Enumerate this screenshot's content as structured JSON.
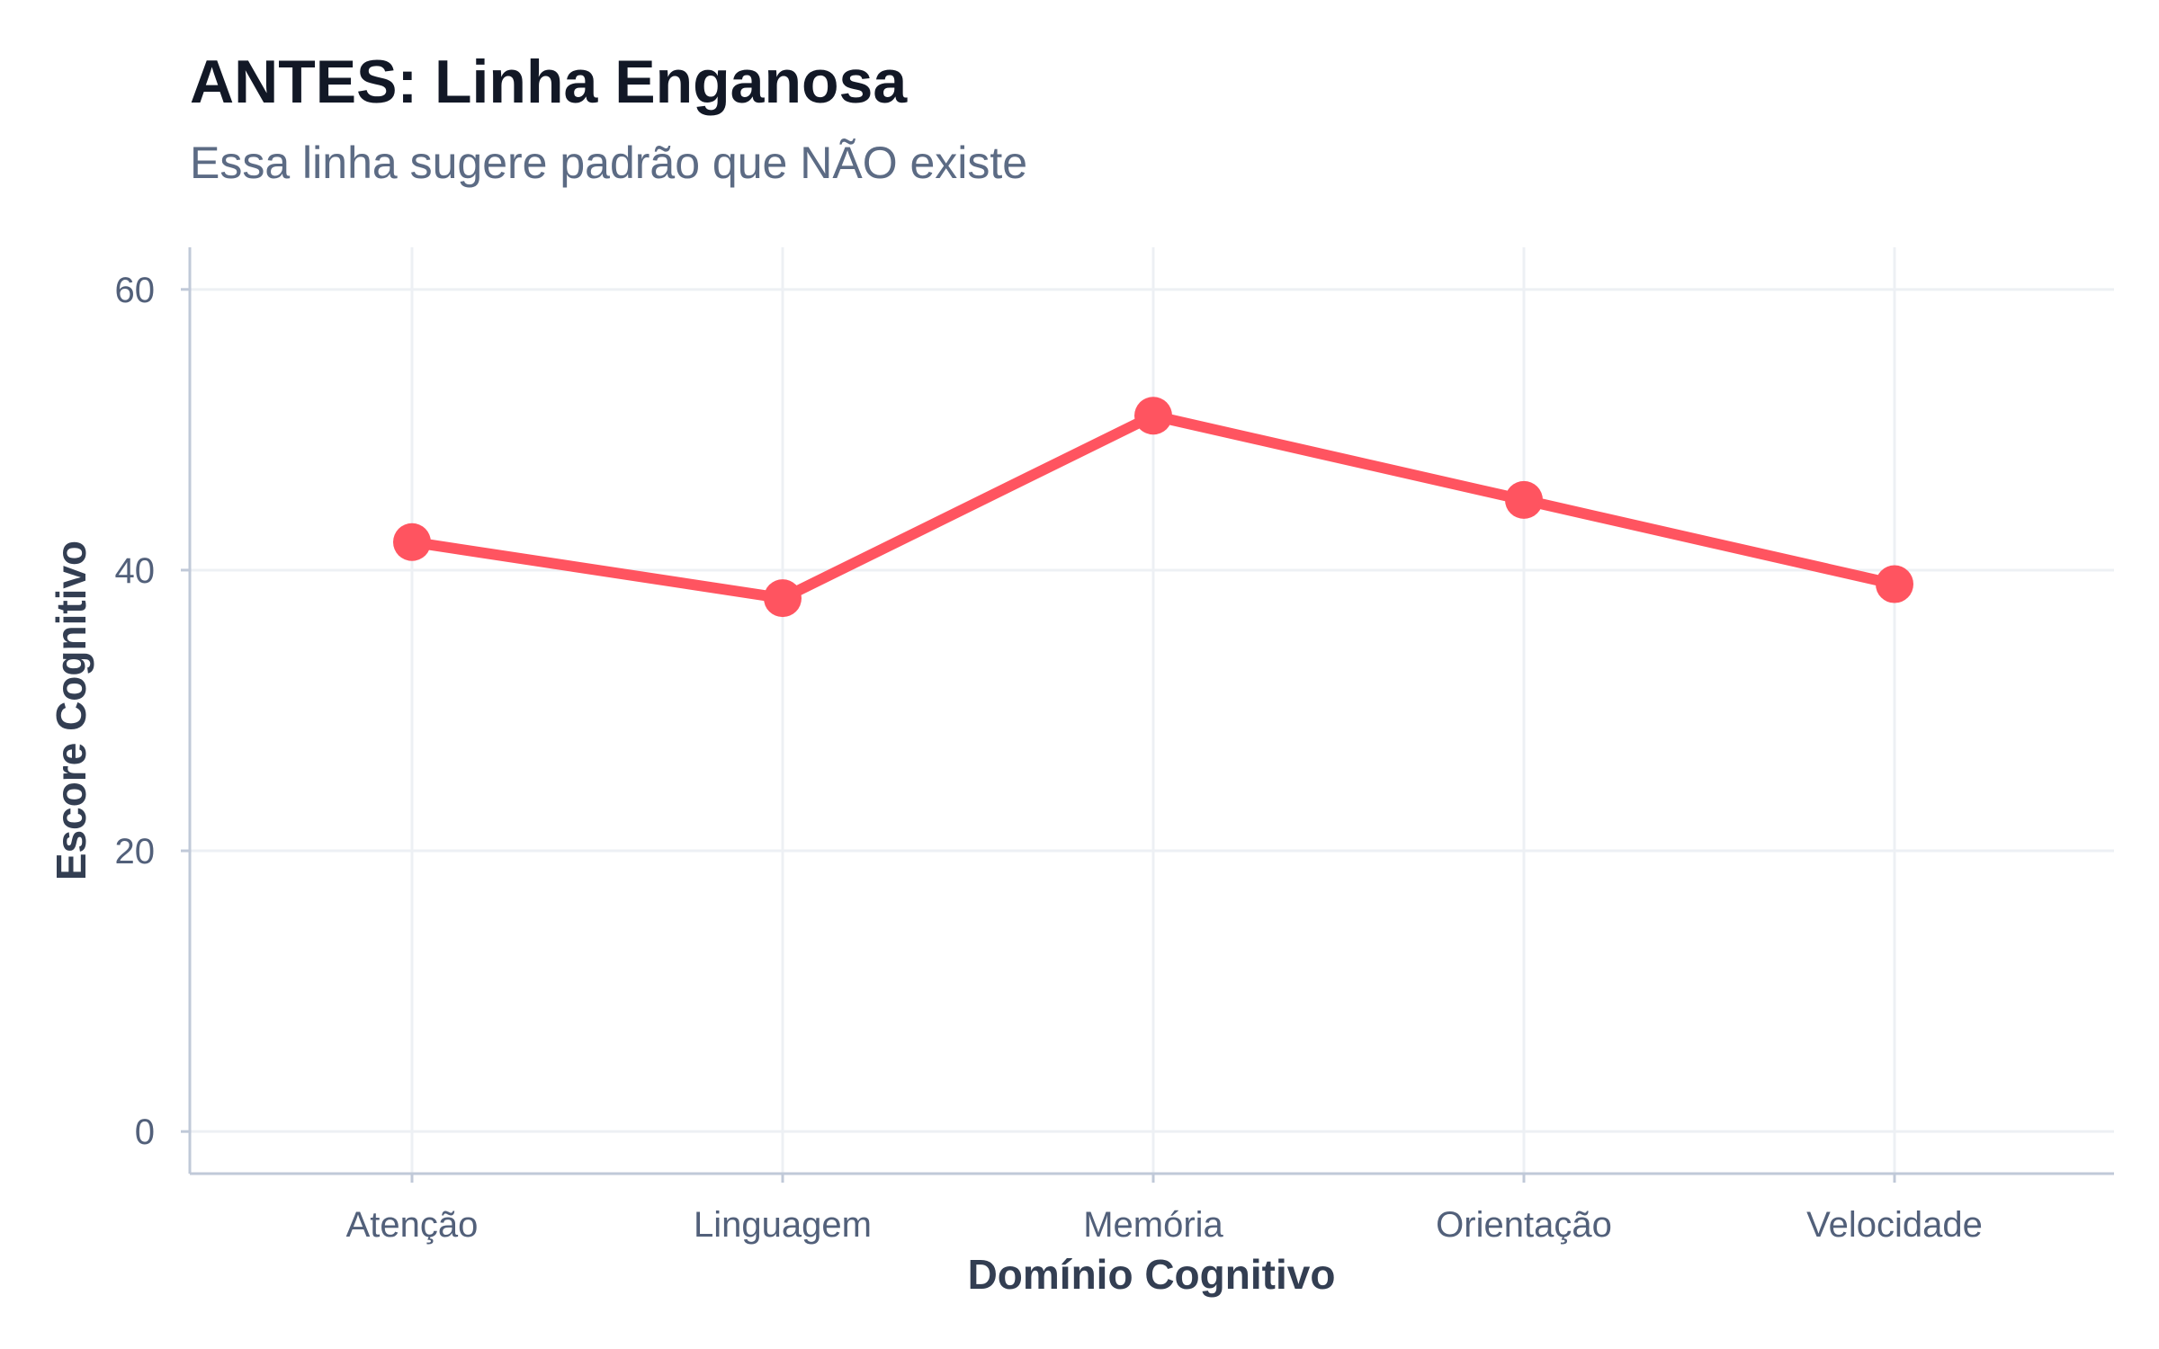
{
  "chart_data": {
    "type": "line",
    "title": "ANTES: Linha Enganosa",
    "subtitle": "Essa linha sugere padrão que NÃO existe",
    "xlabel": "Domínio Cognitivo",
    "ylabel": "Escore Cognitivo",
    "categories": [
      "Atenção",
      "Linguagem",
      "Memória",
      "Orientação",
      "Velocidade"
    ],
    "values": [
      42,
      38,
      51,
      45,
      39
    ],
    "ylim": [
      -3,
      63
    ],
    "yticks": [
      0,
      20,
      40,
      60
    ],
    "grid": true,
    "legend": "none",
    "markers": true
  },
  "colors": {
    "line": "#ff5460",
    "title": "#121826",
    "subtitle": "#5c6b84",
    "tick_label": "#52607a",
    "axis_title": "#333e52",
    "grid": "#edf0f4",
    "axis": "#c0c9d8"
  }
}
